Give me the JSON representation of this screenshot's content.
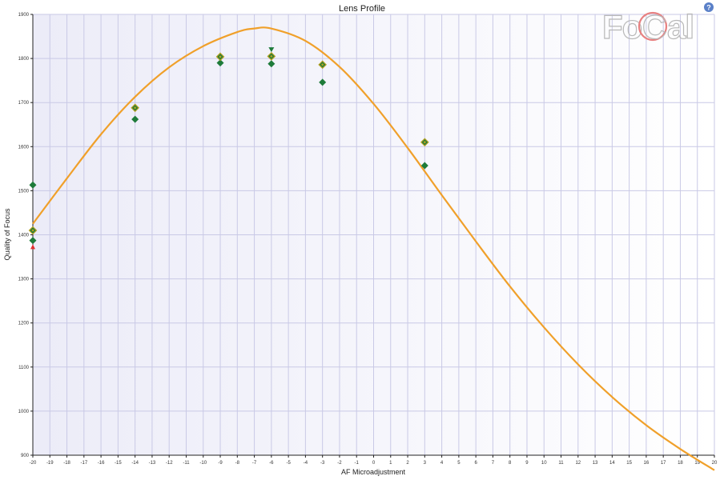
{
  "help": {
    "glyph": "?",
    "icon": "help-icon"
  },
  "logo": {
    "text_left": "Fo",
    "text_ring": "C",
    "text_right": "al",
    "icon": "focal-logo"
  },
  "colors": {
    "background": "#ffffff",
    "plot_background_left": "#ececf8",
    "plot_background_right": "#ffffff",
    "grid": "#c9c9e6",
    "curve": "#f0a02a",
    "marker_fill": "#1e7b3a",
    "marker_outline": "#b5a020",
    "invalid_marker": "#e03030"
  },
  "chart_data": {
    "type": "scatter",
    "title": "Lens Profile",
    "xlabel": "AF Microadjustment",
    "ylabel": "Quality of Focus",
    "xlim": [
      -20,
      20
    ],
    "ylim": [
      900,
      1900
    ],
    "x_ticks": [
      -20,
      -19,
      -18,
      -17,
      -16,
      -15,
      -14,
      -13,
      -12,
      -11,
      -10,
      -9,
      -8,
      -7,
      -6,
      -5,
      -4,
      -3,
      -2,
      -1,
      0,
      1,
      2,
      3,
      4,
      5,
      6,
      7,
      8,
      9,
      10,
      11,
      12,
      13,
      14,
      15,
      16,
      17,
      18,
      19,
      20
    ],
    "x_tick_labels": [
      "-20",
      "-19",
      "-18",
      "-17",
      "-16",
      "-15",
      "-14",
      "-13",
      "-12",
      "-11",
      "-10",
      "-9",
      "-8",
      "-7",
      "-6",
      "-5",
      "-4",
      "-3",
      "-2",
      "-1",
      "0",
      "1",
      "2",
      "3",
      "4",
      "5",
      "6",
      "7",
      "8",
      "9",
      "10",
      "11",
      "12",
      "13",
      "14",
      "15",
      "16",
      "17",
      "18",
      "19",
      "20"
    ],
    "y_ticks": [
      900,
      1000,
      1100,
      1200,
      1300,
      1400,
      1500,
      1600,
      1700,
      1800,
      1900
    ],
    "y_tick_labels": [
      "900",
      "1000",
      "1100",
      "1200",
      "1300",
      "1400",
      "1500",
      "1600",
      "1700",
      "1800",
      "1900"
    ],
    "grid": true,
    "series": [
      {
        "type": "line",
        "points": [
          [
            -20,
            1425
          ],
          [
            -18,
            1528
          ],
          [
            -16,
            1628
          ],
          [
            -14,
            1713
          ],
          [
            -12,
            1780
          ],
          [
            -10,
            1828
          ],
          [
            -8,
            1860
          ],
          [
            -7,
            1868
          ],
          [
            -6,
            1868
          ],
          [
            -4,
            1840
          ],
          [
            -2,
            1781
          ],
          [
            0,
            1697
          ],
          [
            2,
            1597
          ],
          [
            4,
            1490
          ],
          [
            6,
            1385
          ],
          [
            8,
            1283
          ],
          [
            10,
            1190
          ],
          [
            12,
            1106
          ],
          [
            14,
            1032
          ],
          [
            16,
            968
          ],
          [
            18,
            914
          ],
          [
            20,
            866
          ]
        ]
      },
      {
        "type": "scatter",
        "marker": "diamond",
        "points": [
          [
            -20,
            1513
          ],
          [
            -20,
            1387
          ],
          [
            -14,
            1662
          ],
          [
            -9,
            1790
          ],
          [
            -6,
            1788
          ],
          [
            -3,
            1746
          ],
          [
            3,
            1557
          ]
        ]
      },
      {
        "type": "scatter",
        "marker": "diamond-outlined",
        "points": [
          [
            -20,
            1410
          ],
          [
            -14,
            1688
          ],
          [
            -9,
            1804
          ],
          [
            -6,
            1805
          ],
          [
            -3,
            1786
          ],
          [
            3,
            1610
          ]
        ]
      },
      {
        "type": "scatter",
        "marker": "triangle-down",
        "points": [
          [
            -6,
            1820
          ]
        ]
      },
      {
        "type": "scatter",
        "marker": "triangle-up-red",
        "points": [
          [
            -20,
            1373
          ]
        ]
      }
    ]
  }
}
